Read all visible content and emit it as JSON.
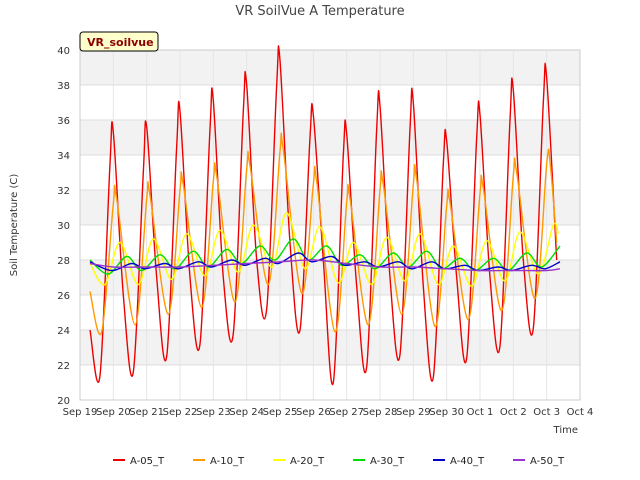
{
  "chart_data": {
    "type": "line",
    "title": "VR SoilVue A Temperature",
    "xlabel": "Time",
    "ylabel": "Soil Temperature (C)",
    "badge": "VR_soilvue",
    "ylim": [
      20,
      40
    ],
    "yticks": [
      20,
      22,
      24,
      26,
      28,
      30,
      32,
      34,
      36,
      38,
      40
    ],
    "xlim": [
      0,
      15
    ],
    "xticks": [
      {
        "pos": 0,
        "label": "Sep 19"
      },
      {
        "pos": 1,
        "label": "Sep 20"
      },
      {
        "pos": 2,
        "label": "Sep 21"
      },
      {
        "pos": 3,
        "label": "Sep 22"
      },
      {
        "pos": 4,
        "label": "Sep 23"
      },
      {
        "pos": 5,
        "label": "Sep 24"
      },
      {
        "pos": 6,
        "label": "Sep 25"
      },
      {
        "pos": 7,
        "label": "Sep 26"
      },
      {
        "pos": 8,
        "label": "Sep 27"
      },
      {
        "pos": 9,
        "label": "Sep 28"
      },
      {
        "pos": 10,
        "label": "Sep 29"
      },
      {
        "pos": 11,
        "label": "Sep 30"
      },
      {
        "pos": 12,
        "label": "Oct 1"
      },
      {
        "pos": 13,
        "label": "Oct 2"
      },
      {
        "pos": 14,
        "label": "Oct 3"
      },
      {
        "pos": 15,
        "label": "Oct 4"
      }
    ],
    "grid": true,
    "legend_position": "bottom",
    "series": [
      {
        "name": "A-05_T",
        "color": "#ee0000",
        "width": 1.4,
        "points": [
          [
            0.3,
            24.0
          ],
          [
            0.6,
            21.4
          ],
          [
            0.9,
            33.5
          ],
          [
            1.0,
            35.3
          ],
          [
            1.3,
            26.0
          ],
          [
            1.6,
            21.6
          ],
          [
            1.9,
            33.0
          ],
          [
            2.0,
            35.6
          ],
          [
            2.3,
            27.0
          ],
          [
            2.6,
            22.5
          ],
          [
            2.9,
            34.5
          ],
          [
            3.0,
            36.5
          ],
          [
            3.3,
            27.0
          ],
          [
            3.6,
            23.2
          ],
          [
            3.9,
            35.5
          ],
          [
            4.0,
            37.1
          ],
          [
            4.3,
            27.0
          ],
          [
            4.6,
            23.8
          ],
          [
            4.9,
            36.5
          ],
          [
            5.0,
            38.0
          ],
          [
            5.3,
            28.0
          ],
          [
            5.6,
            25.2
          ],
          [
            5.9,
            38.0
          ],
          [
            6.0,
            39.4
          ],
          [
            6.3,
            29.0
          ],
          [
            6.6,
            24.0
          ],
          [
            6.9,
            35.0
          ],
          [
            7.0,
            36.3
          ],
          [
            7.3,
            28.0
          ],
          [
            7.6,
            21.0
          ],
          [
            7.9,
            34.0
          ],
          [
            8.0,
            35.2
          ],
          [
            8.3,
            26.5
          ],
          [
            8.6,
            21.9
          ],
          [
            8.9,
            35.5
          ],
          [
            9.0,
            36.8
          ],
          [
            9.3,
            27.0
          ],
          [
            9.6,
            22.6
          ],
          [
            9.9,
            35.5
          ],
          [
            10.0,
            37.0
          ],
          [
            10.3,
            26.5
          ],
          [
            10.6,
            21.3
          ],
          [
            10.9,
            33.5
          ],
          [
            11.0,
            34.8
          ],
          [
            11.3,
            27.0
          ],
          [
            11.6,
            22.4
          ],
          [
            11.9,
            35.0
          ],
          [
            12.0,
            36.3
          ],
          [
            12.3,
            27.0
          ],
          [
            12.6,
            23.1
          ],
          [
            12.9,
            36.0
          ],
          [
            13.0,
            37.7
          ],
          [
            13.3,
            28.0
          ],
          [
            13.6,
            24.1
          ],
          [
            13.9,
            37.0
          ],
          [
            14.0,
            38.4
          ],
          [
            14.3,
            28.0
          ]
        ]
      },
      {
        "name": "A-10_T",
        "color": "#ff9900",
        "width": 1.4,
        "points": [
          [
            0.3,
            26.2
          ],
          [
            0.65,
            23.9
          ],
          [
            1.0,
            31.2
          ],
          [
            1.1,
            31.5
          ],
          [
            1.65,
            24.3
          ],
          [
            2.0,
            31.5
          ],
          [
            2.1,
            31.7
          ],
          [
            2.65,
            24.9
          ],
          [
            3.0,
            32.0
          ],
          [
            3.1,
            32.3
          ],
          [
            3.65,
            25.3
          ],
          [
            4.0,
            32.5
          ],
          [
            4.1,
            32.8
          ],
          [
            4.65,
            25.6
          ],
          [
            5.0,
            33.2
          ],
          [
            5.1,
            33.4
          ],
          [
            5.65,
            26.6
          ],
          [
            6.0,
            34.2
          ],
          [
            6.1,
            34.3
          ],
          [
            6.65,
            26.1
          ],
          [
            7.0,
            32.3
          ],
          [
            7.1,
            32.5
          ],
          [
            7.65,
            23.9
          ],
          [
            8.0,
            31.3
          ],
          [
            8.1,
            31.5
          ],
          [
            8.65,
            24.3
          ],
          [
            9.0,
            32.0
          ],
          [
            9.1,
            32.3
          ],
          [
            9.65,
            24.9
          ],
          [
            10.0,
            32.3
          ],
          [
            10.1,
            32.6
          ],
          [
            10.65,
            24.2
          ],
          [
            11.0,
            31.1
          ],
          [
            11.1,
            31.3
          ],
          [
            11.65,
            24.6
          ],
          [
            12.0,
            31.8
          ],
          [
            12.1,
            32.1
          ],
          [
            12.65,
            25.1
          ],
          [
            13.0,
            32.8
          ],
          [
            13.1,
            33.0
          ],
          [
            13.65,
            25.8
          ],
          [
            14.0,
            33.5
          ],
          [
            14.1,
            33.6
          ],
          [
            14.3,
            29.0
          ]
        ]
      },
      {
        "name": "A-20_T",
        "color": "#ffff00",
        "width": 1.4,
        "points": [
          [
            0.3,
            27.8
          ],
          [
            0.75,
            26.6
          ],
          [
            1.2,
            29.0
          ],
          [
            1.75,
            26.6
          ],
          [
            2.2,
            29.2
          ],
          [
            2.75,
            26.9
          ],
          [
            3.2,
            29.5
          ],
          [
            3.75,
            27.1
          ],
          [
            4.2,
            29.7
          ],
          [
            4.75,
            27.3
          ],
          [
            5.2,
            30.0
          ],
          [
            5.75,
            27.6
          ],
          [
            6.2,
            30.7
          ],
          [
            6.75,
            27.5
          ],
          [
            7.2,
            29.9
          ],
          [
            7.75,
            26.7
          ],
          [
            8.2,
            29.0
          ],
          [
            8.75,
            26.6
          ],
          [
            9.2,
            29.3
          ],
          [
            9.75,
            26.8
          ],
          [
            10.2,
            29.5
          ],
          [
            10.75,
            26.6
          ],
          [
            11.2,
            28.8
          ],
          [
            11.75,
            26.5
          ],
          [
            12.2,
            29.1
          ],
          [
            12.75,
            26.8
          ],
          [
            13.2,
            29.6
          ],
          [
            13.75,
            27.2
          ],
          [
            14.2,
            30.0
          ],
          [
            14.35,
            29.5
          ]
        ]
      },
      {
        "name": "A-30_T",
        "color": "#00dd00",
        "width": 1.4,
        "points": [
          [
            0.3,
            28.0
          ],
          [
            0.85,
            27.2
          ],
          [
            1.4,
            28.2
          ],
          [
            1.85,
            27.4
          ],
          [
            2.4,
            28.3
          ],
          [
            2.85,
            27.5
          ],
          [
            3.4,
            28.5
          ],
          [
            3.85,
            27.6
          ],
          [
            4.4,
            28.6
          ],
          [
            4.85,
            27.8
          ],
          [
            5.4,
            28.8
          ],
          [
            5.85,
            28.0
          ],
          [
            6.4,
            29.2
          ],
          [
            6.85,
            28.0
          ],
          [
            7.4,
            28.8
          ],
          [
            7.85,
            27.7
          ],
          [
            8.4,
            28.3
          ],
          [
            8.85,
            27.5
          ],
          [
            9.4,
            28.4
          ],
          [
            9.85,
            27.6
          ],
          [
            10.4,
            28.5
          ],
          [
            10.85,
            27.5
          ],
          [
            11.4,
            28.1
          ],
          [
            11.85,
            27.4
          ],
          [
            12.4,
            28.1
          ],
          [
            12.85,
            27.4
          ],
          [
            13.4,
            28.4
          ],
          [
            13.85,
            27.6
          ],
          [
            14.4,
            28.8
          ]
        ]
      },
      {
        "name": "A-40_T",
        "color": "#0000cc",
        "width": 1.4,
        "points": [
          [
            0.3,
            27.9
          ],
          [
            0.95,
            27.4
          ],
          [
            1.55,
            27.8
          ],
          [
            1.95,
            27.5
          ],
          [
            2.55,
            27.8
          ],
          [
            2.95,
            27.5
          ],
          [
            3.55,
            27.9
          ],
          [
            3.95,
            27.6
          ],
          [
            4.55,
            28.0
          ],
          [
            4.95,
            27.7
          ],
          [
            5.55,
            28.1
          ],
          [
            5.95,
            27.8
          ],
          [
            6.55,
            28.4
          ],
          [
            6.95,
            27.9
          ],
          [
            7.55,
            28.2
          ],
          [
            7.95,
            27.7
          ],
          [
            8.55,
            27.9
          ],
          [
            8.95,
            27.6
          ],
          [
            9.55,
            27.9
          ],
          [
            9.95,
            27.5
          ],
          [
            10.55,
            27.9
          ],
          [
            10.95,
            27.5
          ],
          [
            11.55,
            27.7
          ],
          [
            11.95,
            27.4
          ],
          [
            12.55,
            27.6
          ],
          [
            12.95,
            27.4
          ],
          [
            13.55,
            27.7
          ],
          [
            13.95,
            27.5
          ],
          [
            14.4,
            27.9
          ]
        ]
      },
      {
        "name": "A-50_T",
        "color": "#9933cc",
        "width": 1.4,
        "points": [
          [
            0.3,
            27.8
          ],
          [
            1.0,
            27.6
          ],
          [
            2.0,
            27.6
          ],
          [
            3.0,
            27.6
          ],
          [
            4.0,
            27.7
          ],
          [
            5.0,
            27.8
          ],
          [
            6.0,
            27.9
          ],
          [
            7.0,
            28.0
          ],
          [
            8.0,
            27.8
          ],
          [
            9.0,
            27.6
          ],
          [
            10.0,
            27.6
          ],
          [
            11.0,
            27.5
          ],
          [
            12.0,
            27.4
          ],
          [
            13.0,
            27.4
          ],
          [
            14.0,
            27.4
          ],
          [
            14.4,
            27.5
          ]
        ]
      }
    ]
  }
}
